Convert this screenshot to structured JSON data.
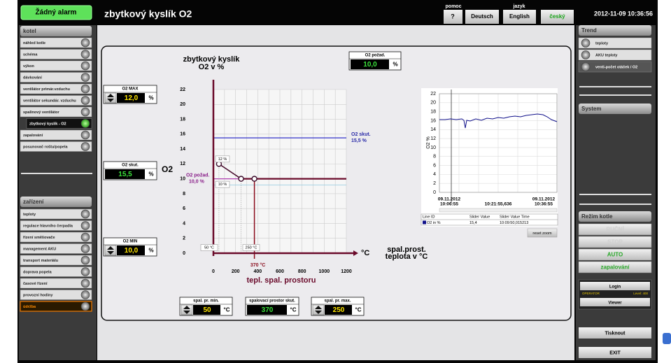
{
  "header": {
    "alarm": "Žádný alarm",
    "title": "zbytkový kyslík O2",
    "help_label": "pomoc",
    "help_button": "?",
    "language_label": "jazyk",
    "languages": [
      "Deutsch",
      "English",
      "český"
    ],
    "datetime": "2012-11-09 10:36:56"
  },
  "left_menu": {
    "kotel": {
      "title": "kotel",
      "items": [
        "náhled kotle",
        "schéma",
        "výkon",
        "dávkování",
        "ventilátor primár.vzduchu",
        "ventilátor sekundár. vzduchu",
        "spalinový ventilátor",
        "zbytkový kyslík - O2",
        "zapalování",
        "posunovač roštu/popela"
      ]
    },
    "zarizeni": {
      "title": "zařízení",
      "items": [
        "teploty",
        "regulace hlavního čerpadla",
        "řízení směšovače",
        "management AKU",
        "transport materiálu",
        "doprava popela",
        "časové řízení",
        "provozní hodiny",
        "údržba"
      ]
    }
  },
  "right_menu": {
    "trend": {
      "title": "Trend",
      "items": [
        "teploty",
        "AKU teploty",
        "venti-počet otáček / O2"
      ]
    },
    "system": "System",
    "mode": {
      "title": "Režim kotle",
      "items": [
        "RUČNÍ",
        "STOP",
        "AUTO",
        "zapalování"
      ]
    },
    "login": {
      "login": "Login",
      "operator": "OPERATOR",
      "level": "Level: 400",
      "viewer": "Viewer"
    },
    "print": "Tisknout",
    "exit": "EXIT"
  },
  "main": {
    "o2_max": {
      "label": "O2 MAX",
      "value": "12,0",
      "unit": "%"
    },
    "o2_actual": {
      "label": "O2 skut.",
      "value": "15,5",
      "unit": "%"
    },
    "o2_min": {
      "label": "O2 MIN",
      "value": "10,0",
      "unit": "%"
    },
    "o2_setpoint": {
      "label": "O2 požad.",
      "value": "10,0",
      "unit": "%"
    },
    "y_title": [
      "zbytkový kyslík",
      "O2 v %"
    ],
    "o2_label": "O2",
    "yticks": [
      "0",
      "2",
      "4",
      "6",
      "8",
      "10",
      "12",
      "14",
      "16",
      "18",
      "20",
      "22"
    ],
    "xticks": [
      "0",
      "200",
      "400",
      "600",
      "800",
      "1000",
      "1200"
    ],
    "x_unit": "°C",
    "x_title": "tepl. spal. prostoru",
    "x_title_right": [
      "spal.prost.",
      "teplota v °C"
    ],
    "annotations": {
      "actual_label": "O2 skut.",
      "actual_value": "15,5 %",
      "max_tag": "12 %",
      "min_tag": "10 %",
      "setpoint_label": "O2 požad.",
      "setpoint_value": "10,0 %",
      "min_temp_tag": "50 °C",
      "max_temp_tag": "250 °C",
      "actual_temp": "370 °C"
    },
    "temp_min": {
      "label": "spal. pr. min.",
      "value": "50",
      "unit": "°C"
    },
    "temp_actual": {
      "label": "spalovací prostor skut.",
      "value": "370",
      "unit": "°C"
    },
    "temp_max": {
      "label": "spal. pr. max.",
      "value": "250",
      "unit": "°C"
    },
    "trend": {
      "yticks": [
        "0",
        "2",
        "4",
        "6",
        "8",
        "10",
        "12",
        "14",
        "16",
        "18",
        "20",
        "22"
      ],
      "y_label": "O2 %",
      "x_start": [
        "09.11.2012",
        "10:06:55"
      ],
      "x_mid": "10:21:55,636",
      "x_end": [
        "09.11.2012",
        "10:36:55"
      ],
      "table_headers": [
        "Line ID",
        "Slider Value",
        "Slider Value Time"
      ],
      "table_row": [
        "O2 in %",
        "15,4",
        "10:09:50,015213"
      ],
      "reset": "reset zoom"
    }
  }
}
